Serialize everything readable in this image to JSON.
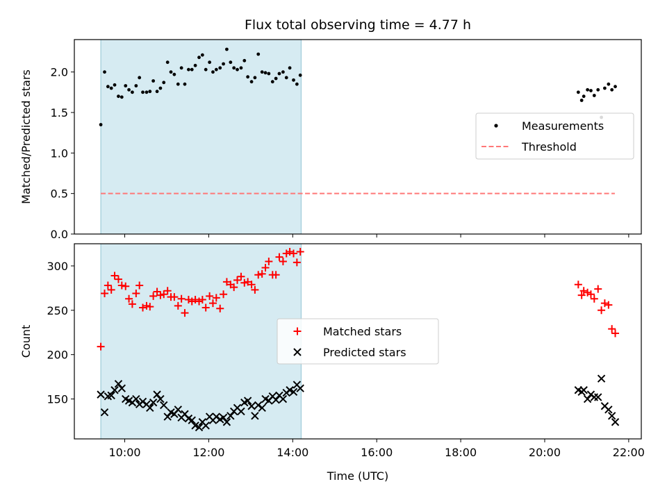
{
  "title": "Flux total observing time = 4.77 h",
  "chart_data": [
    {
      "type": "scatter",
      "ylabel": "Matched/Predicted stars",
      "xlim": [
        8.8,
        22.3
      ],
      "ylim": [
        0,
        2.4
      ],
      "yticks": [
        0.0,
        0.5,
        1.0,
        1.5,
        2.0
      ],
      "ytick_labels": [
        "0.0",
        "0.5",
        "1.0",
        "1.5",
        "2.0"
      ],
      "shaded_span": [
        9.43,
        14.2
      ],
      "threshold": {
        "name": "Threshold",
        "value": 0.5,
        "x_range": [
          9.43,
          21.67
        ],
        "color": "#ff7777"
      },
      "legend": {
        "placement": "center-right",
        "entries": [
          "Measurements",
          "Threshold"
        ]
      },
      "series": [
        {
          "name": "Measurements",
          "marker": "dot",
          "color": "#000000",
          "x": [
            9.43,
            9.52,
            9.6,
            9.68,
            9.76,
            9.85,
            9.93,
            10.02,
            10.1,
            10.18,
            10.27,
            10.35,
            10.43,
            10.52,
            10.6,
            10.68,
            10.77,
            10.85,
            10.93,
            11.02,
            11.1,
            11.18,
            11.27,
            11.35,
            11.43,
            11.52,
            11.6,
            11.68,
            11.77,
            11.85,
            11.93,
            12.02,
            12.1,
            12.18,
            12.27,
            12.35,
            12.43,
            12.52,
            12.6,
            12.68,
            12.77,
            12.85,
            12.93,
            13.02,
            13.1,
            13.18,
            13.27,
            13.35,
            13.43,
            13.52,
            13.6,
            13.68,
            13.77,
            13.85,
            13.93,
            14.02,
            14.1,
            14.18,
            20.8,
            20.88,
            20.93,
            21.02,
            21.1,
            21.18,
            21.27,
            21.35,
            21.43,
            21.52,
            21.6,
            21.68
          ],
          "values": [
            1.35,
            2.0,
            1.82,
            1.8,
            1.84,
            1.7,
            1.69,
            1.83,
            1.78,
            1.75,
            1.83,
            1.93,
            1.75,
            1.75,
            1.76,
            1.89,
            1.76,
            1.8,
            1.87,
            2.12,
            2.0,
            1.97,
            1.85,
            2.05,
            1.85,
            2.03,
            2.03,
            2.08,
            2.18,
            2.21,
            2.03,
            2.12,
            2.0,
            2.03,
            2.05,
            2.1,
            2.28,
            2.12,
            2.05,
            2.03,
            2.05,
            2.14,
            1.94,
            1.88,
            1.93,
            2.22,
            2.0,
            1.99,
            1.98,
            1.88,
            1.92,
            1.98,
            2.0,
            1.93,
            2.05,
            1.9,
            1.85,
            1.96,
            1.75,
            1.65,
            1.7,
            1.78,
            1.77,
            1.71,
            1.78,
            1.44,
            1.8,
            1.85,
            1.78,
            1.82
          ]
        }
      ]
    },
    {
      "type": "scatter",
      "xlabel": "Time (UTC)",
      "ylabel": "Count",
      "xlim": [
        8.8,
        22.3
      ],
      "ylim": [
        105,
        325
      ],
      "xticks": [
        10,
        12,
        14,
        16,
        18,
        20,
        22
      ],
      "xtick_labels": [
        "10:00",
        "12:00",
        "14:00",
        "16:00",
        "18:00",
        "20:00",
        "22:00"
      ],
      "yticks": [
        150,
        200,
        250,
        300
      ],
      "ytick_labels": [
        "150",
        "200",
        "250",
        "300"
      ],
      "shaded_span": [
        9.43,
        14.2
      ],
      "legend": {
        "placement": "center",
        "entries": [
          "Matched stars",
          "Predicted stars"
        ]
      },
      "series": [
        {
          "name": "Matched stars",
          "marker": "plus",
          "color": "#ff0000",
          "x": [
            9.43,
            9.52,
            9.6,
            9.68,
            9.76,
            9.85,
            9.93,
            10.02,
            10.1,
            10.18,
            10.27,
            10.35,
            10.43,
            10.52,
            10.6,
            10.68,
            10.77,
            10.85,
            10.93,
            11.02,
            11.1,
            11.18,
            11.27,
            11.35,
            11.43,
            11.52,
            11.6,
            11.68,
            11.77,
            11.85,
            11.93,
            12.02,
            12.1,
            12.18,
            12.27,
            12.35,
            12.43,
            12.52,
            12.6,
            12.68,
            12.77,
            12.85,
            12.93,
            13.02,
            13.1,
            13.18,
            13.27,
            13.35,
            13.43,
            13.52,
            13.6,
            13.68,
            13.77,
            13.85,
            13.93,
            14.02,
            14.1,
            14.18,
            20.8,
            20.88,
            20.93,
            21.02,
            21.1,
            21.18,
            21.27,
            21.35,
            21.43,
            21.52,
            21.6,
            21.68
          ],
          "values": [
            209,
            269,
            278,
            273,
            289,
            285,
            278,
            277,
            263,
            257,
            269,
            278,
            253,
            255,
            254,
            266,
            271,
            267,
            268,
            272,
            265,
            265,
            255,
            263,
            247,
            262,
            260,
            262,
            260,
            262,
            253,
            266,
            258,
            264,
            252,
            268,
            282,
            279,
            276,
            284,
            288,
            281,
            282,
            279,
            273,
            290,
            291,
            298,
            305,
            290,
            290,
            310,
            305,
            314,
            316,
            314,
            304,
            316,
            279,
            267,
            272,
            270,
            268,
            263,
            274,
            250,
            258,
            256,
            229,
            224
          ]
        },
        {
          "name": "Predicted stars",
          "marker": "x",
          "color": "#000000",
          "x": [
            9.43,
            9.52,
            9.6,
            9.68,
            9.76,
            9.85,
            9.93,
            10.02,
            10.1,
            10.18,
            10.27,
            10.35,
            10.43,
            10.52,
            10.6,
            10.68,
            10.77,
            10.85,
            10.93,
            11.02,
            11.1,
            11.18,
            11.27,
            11.35,
            11.43,
            11.52,
            11.6,
            11.68,
            11.77,
            11.85,
            11.93,
            12.02,
            12.1,
            12.18,
            12.27,
            12.35,
            12.43,
            12.52,
            12.6,
            12.68,
            12.77,
            12.85,
            12.93,
            13.02,
            13.1,
            13.18,
            13.27,
            13.35,
            13.43,
            13.52,
            13.6,
            13.68,
            13.77,
            13.85,
            13.93,
            14.02,
            14.1,
            14.18,
            20.8,
            20.88,
            20.93,
            21.02,
            21.1,
            21.18,
            21.27,
            21.35,
            21.43,
            21.52,
            21.6,
            21.68
          ],
          "values": [
            155,
            135,
            153,
            154,
            160,
            167,
            162,
            150,
            148,
            146,
            150,
            144,
            147,
            144,
            140,
            146,
            155,
            150,
            143,
            130,
            135,
            133,
            138,
            129,
            133,
            128,
            126,
            120,
            118,
            124,
            120,
            130,
            126,
            130,
            127,
            129,
            124,
            131,
            136,
            140,
            136,
            146,
            148,
            142,
            131,
            143,
            140,
            150,
            148,
            153,
            149,
            154,
            150,
            157,
            160,
            158,
            166,
            162,
            160,
            158,
            160,
            150,
            155,
            152,
            152,
            173,
            142,
            138,
            131,
            124
          ]
        }
      ]
    }
  ]
}
